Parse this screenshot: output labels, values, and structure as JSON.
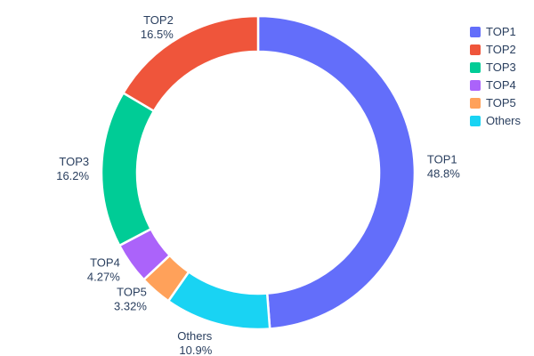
{
  "chart_data": {
    "type": "pie",
    "subtype": "donut",
    "hole_ratio": 0.77,
    "title": "",
    "legend_position": "right",
    "background": "#ffffff",
    "text_color": "#2a3f5f",
    "slice_border_color": "#ffffff",
    "slices": [
      {
        "label": "TOP1",
        "value": 48.8,
        "percent_text": "48.8%",
        "color": "#636EFA"
      },
      {
        "label": "TOP2",
        "value": 16.5,
        "percent_text": "16.5%",
        "color": "#EF553B"
      },
      {
        "label": "TOP3",
        "value": 16.2,
        "percent_text": "16.2%",
        "color": "#00CC96"
      },
      {
        "label": "TOP4",
        "value": 4.27,
        "percent_text": "4.27%",
        "color": "#AB63FA"
      },
      {
        "label": "TOP5",
        "value": 3.32,
        "percent_text": "3.32%",
        "color": "#FFA15A"
      },
      {
        "label": "Others",
        "value": 10.9,
        "percent_text": "10.9%",
        "color": "#19D3F3"
      }
    ],
    "draw_order_clockwise_from_top": [
      "TOP1",
      "Others",
      "TOP5",
      "TOP4",
      "TOP3",
      "TOP2"
    ],
    "legend_order": [
      "TOP1",
      "TOP2",
      "TOP3",
      "TOP4",
      "TOP5",
      "Others"
    ]
  }
}
